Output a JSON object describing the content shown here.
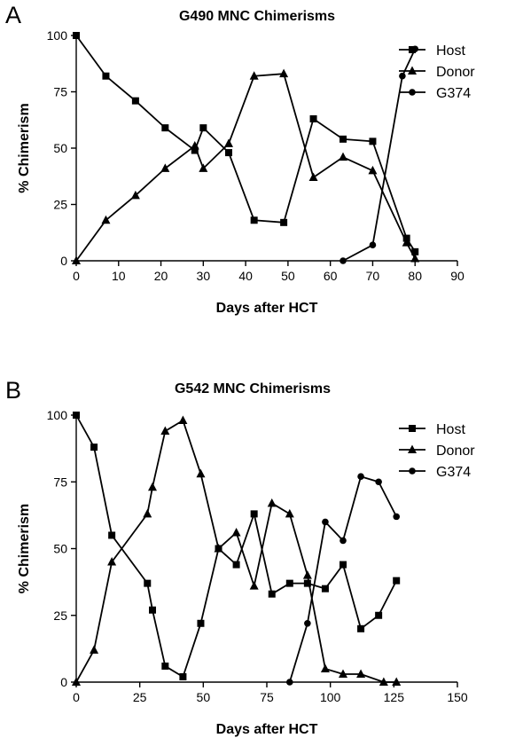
{
  "chart_data": [
    {
      "type": "line",
      "panel": "A",
      "title": "G490 MNC Chimerisms",
      "xlabel": "Days after HCT",
      "ylabel": "% Chimerism",
      "xlim": [
        0,
        90
      ],
      "ylim": [
        0,
        100
      ],
      "xticks": [
        0,
        10,
        20,
        30,
        40,
        50,
        60,
        70,
        80,
        90
      ],
      "yticks": [
        0,
        25,
        50,
        75,
        100
      ],
      "grid": false,
      "legend_position": "top-right",
      "series": [
        {
          "name": "Host",
          "marker": "square",
          "x": [
            0,
            7,
            14,
            21,
            28,
            30,
            36,
            42,
            49,
            56,
            63,
            70,
            78,
            80
          ],
          "y": [
            100,
            82,
            71,
            59,
            49,
            59,
            48,
            18,
            17,
            63,
            54,
            53,
            10,
            4
          ]
        },
        {
          "name": "Donor",
          "marker": "triangle",
          "x": [
            0,
            7,
            14,
            21,
            28,
            30,
            36,
            42,
            49,
            56,
            63,
            70,
            78,
            80
          ],
          "y": [
            0,
            18,
            29,
            41,
            51,
            41,
            52,
            82,
            83,
            37,
            46,
            40,
            8,
            1
          ]
        },
        {
          "name": "G374",
          "marker": "circle",
          "x": [
            63,
            70,
            77,
            80
          ],
          "y": [
            0,
            7,
            82,
            94
          ]
        }
      ]
    },
    {
      "type": "line",
      "panel": "B",
      "title": "G542 MNC Chimerisms",
      "xlabel": "Days after HCT",
      "ylabel": "% Chimerism",
      "xlim": [
        0,
        150
      ],
      "ylim": [
        0,
        100
      ],
      "xticks": [
        0,
        25,
        50,
        75,
        100,
        125,
        150
      ],
      "yticks": [
        0,
        25,
        50,
        75,
        100
      ],
      "grid": false,
      "legend_position": "top-right",
      "series": [
        {
          "name": "Host",
          "marker": "square",
          "x": [
            0,
            7,
            14,
            28,
            30,
            35,
            42,
            49,
            56,
            63,
            70,
            77,
            84,
            91,
            98,
            105,
            112,
            119,
            126
          ],
          "y": [
            100,
            88,
            55,
            37,
            27,
            6,
            2,
            22,
            50,
            44,
            63,
            33,
            37,
            37,
            35,
            44,
            20,
            25,
            38
          ]
        },
        {
          "name": "Donor",
          "marker": "triangle",
          "x": [
            0,
            7,
            14,
            28,
            30,
            35,
            42,
            49,
            56,
            63,
            70,
            77,
            84,
            91,
            98,
            105,
            112,
            121,
            126
          ],
          "y": [
            0,
            12,
            45,
            63,
            73,
            94,
            98,
            78,
            50,
            56,
            36,
            67,
            63,
            40,
            5,
            3,
            3,
            0,
            0
          ]
        },
        {
          "name": "G374",
          "marker": "circle",
          "x": [
            84,
            91,
            98,
            105,
            112,
            119,
            126
          ],
          "y": [
            0,
            22,
            60,
            53,
            77,
            75,
            62
          ]
        }
      ]
    }
  ]
}
